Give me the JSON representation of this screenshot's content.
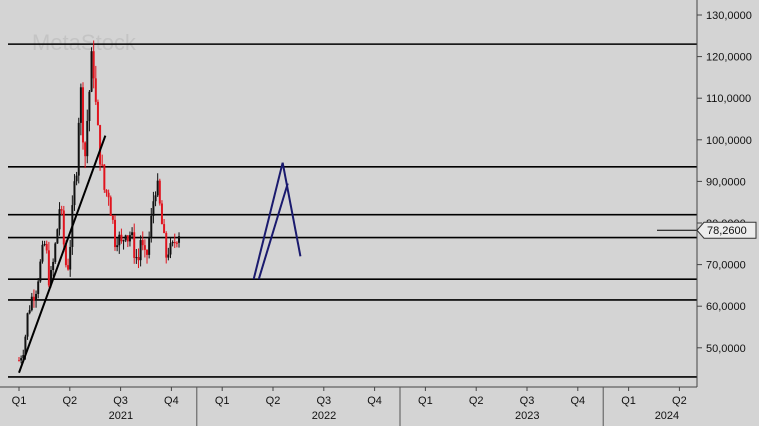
{
  "watermark": "MetaStock",
  "chart_data": {
    "type": "candlestick",
    "y_axis": {
      "ticks": [
        50000,
        60000,
        70000,
        80000,
        90000,
        100000,
        110000,
        120000,
        130000
      ],
      "tick_labels": [
        "50,0000",
        "60,0000",
        "70,0000",
        "80,0000",
        "90,0000",
        "100,0000",
        "110,0000",
        "120,0000",
        "130,0000"
      ],
      "ylim": [
        41000,
        132000
      ],
      "position": "right"
    },
    "x_axis": {
      "quarter_labels": [
        "Q1",
        "Q2",
        "Q3",
        "Q4",
        "Q1",
        "Q2",
        "Q3",
        "Q4",
        "Q1",
        "Q2",
        "Q3",
        "Q4",
        "Q1",
        "Q2"
      ],
      "year_labels": [
        "2021",
        "2022",
        "2023",
        "2024"
      ]
    },
    "last_price": 78260,
    "last_price_label": "78,2600",
    "horizontal_levels": [
      123000,
      93500,
      82000,
      76500,
      66500,
      61500,
      43000
    ],
    "trendlines": [
      {
        "from": [
          0.0,
          44000
        ],
        "to": [
          1.7,
          101000
        ],
        "color": "#000000"
      },
      {
        "from": [
          4.62,
          66500
        ],
        "to": [
          5.19,
          94500
        ],
        "color": "#1a1a6e"
      },
      {
        "from": [
          5.19,
          94500
        ],
        "to": [
          5.54,
          72000
        ],
        "color": "#1a1a6e"
      },
      {
        "from": [
          4.72,
          66500
        ],
        "to": [
          5.29,
          89500
        ],
        "color": "#1a1a6e"
      }
    ],
    "price_path": [
      [
        0.0,
        47000
      ],
      [
        0.1,
        50000
      ],
      [
        0.17,
        58000
      ],
      [
        0.25,
        62000
      ],
      [
        0.33,
        64000
      ],
      [
        0.42,
        70000
      ],
      [
        0.5,
        75000
      ],
      [
        0.55,
        72000
      ],
      [
        0.6,
        65000
      ],
      [
        0.67,
        70000
      ],
      [
        0.75,
        78000
      ],
      [
        0.8,
        84000
      ],
      [
        0.85,
        80000
      ],
      [
        0.9,
        72000
      ],
      [
        0.95,
        68000
      ],
      [
        1.0,
        74000
      ],
      [
        1.05,
        82000
      ],
      [
        1.1,
        90000
      ],
      [
        1.15,
        96000
      ],
      [
        1.2,
        115000
      ],
      [
        1.25,
        104000
      ],
      [
        1.3,
        96000
      ],
      [
        1.35,
        106000
      ],
      [
        1.4,
        114000
      ],
      [
        1.45,
        122000
      ],
      [
        1.5,
        110000
      ],
      [
        1.55,
        102000
      ],
      [
        1.6,
        96000
      ],
      [
        1.65,
        91000
      ],
      [
        1.7,
        86000
      ],
      [
        1.75,
        89000
      ],
      [
        1.8,
        84000
      ],
      [
        1.85,
        80000
      ],
      [
        1.9,
        75000
      ],
      [
        1.95,
        78000
      ],
      [
        2.0,
        74000
      ],
      [
        2.05,
        76000
      ],
      [
        2.1,
        79000
      ],
      [
        2.15,
        76000
      ],
      [
        2.2,
        78000
      ],
      [
        2.25,
        74000
      ],
      [
        2.3,
        72000
      ],
      [
        2.35,
        71000
      ],
      [
        2.4,
        77000
      ],
      [
        2.45,
        72000
      ],
      [
        2.5,
        71000
      ],
      [
        2.55,
        75000
      ],
      [
        2.6,
        80000
      ],
      [
        2.65,
        86000
      ],
      [
        2.7,
        90000
      ],
      [
        2.75,
        86000
      ],
      [
        2.8,
        81000
      ],
      [
        2.85,
        76000
      ],
      [
        2.9,
        72000
      ],
      [
        2.95,
        74000
      ],
      [
        3.0,
        73000
      ],
      [
        3.05,
        75000
      ],
      [
        3.1,
        77000
      ],
      [
        3.15,
        78000
      ],
      [
        3.18,
        78260
      ]
    ]
  }
}
